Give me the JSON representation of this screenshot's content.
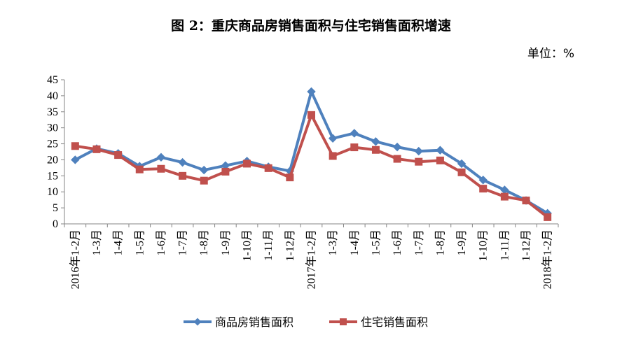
{
  "chart_data": {
    "type": "line",
    "title": "图 2：重庆商品房销售面积与住宅销售面积增速",
    "unit": "单位：%",
    "categories": [
      "2016年1-2月",
      "1-3月",
      "1-4月",
      "1-5月",
      "1-6月",
      "1-7月",
      "1-8月",
      "1-9月",
      "1-10月",
      "1-11月",
      "1-12月",
      "2017年1-2月",
      "1-3月",
      "1-4月",
      "1-5月",
      "1-6月",
      "1-7月",
      "1-8月",
      "1-9月",
      "1-10月",
      "1-11月",
      "1-12月",
      "2018年1-2月"
    ],
    "ylim": [
      0,
      45
    ],
    "yticks": [
      "0",
      "5",
      "10",
      "15",
      "20",
      "25",
      "30",
      "35",
      "40",
      "45"
    ],
    "grid": false,
    "legend_position": "bottom",
    "series": [
      {
        "name": "商品房销售面积",
        "color": "#4F81BD",
        "marker": "diamond",
        "values": [
          20,
          23.5,
          22,
          18,
          20.8,
          19.2,
          16.8,
          18.2,
          19.6,
          17.8,
          16.5,
          41.3,
          26.7,
          28.3,
          25.7,
          24,
          22.7,
          23,
          18.8,
          13.7,
          10.6,
          7.3,
          3.3
        ]
      },
      {
        "name": "住宅销售面积",
        "color": "#C0504D",
        "marker": "square",
        "values": [
          24.3,
          23.3,
          21.5,
          17,
          17.2,
          15,
          13.5,
          16.3,
          18.8,
          17.4,
          14.5,
          34,
          21.2,
          23.9,
          23.1,
          20.3,
          19.4,
          19.8,
          16.1,
          11,
          8.5,
          7.3,
          2.1
        ]
      }
    ]
  }
}
